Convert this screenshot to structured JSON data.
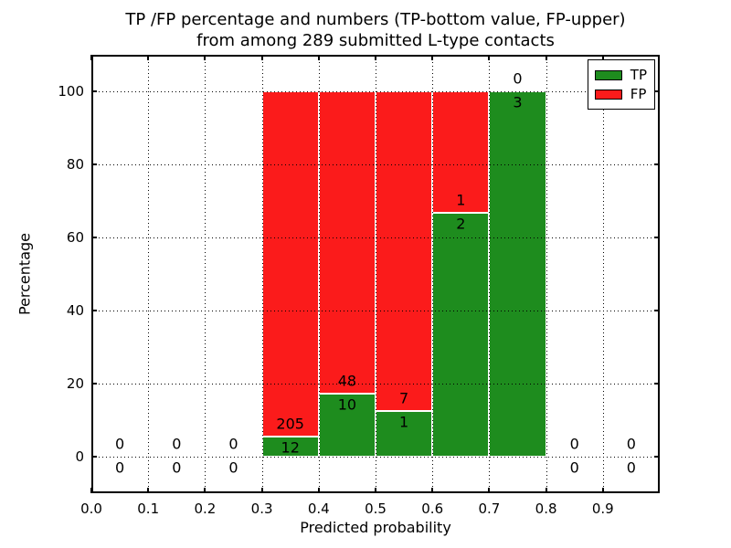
{
  "chart_data": {
    "type": "bar",
    "stacked": true,
    "title_line1": "TP /FP percentage and numbers (TP-bottom value, FP-upper)",
    "title_line2": "from among 289 submitted L-type contacts",
    "xlabel": "Predicted probability",
    "ylabel": "Percentage",
    "xlim": [
      0.0,
      1.0
    ],
    "ylim": [
      -10,
      110
    ],
    "grid": "dotted",
    "bin_width": 0.1,
    "colors": {
      "tp": "#1e8c1e",
      "fp": "#fb1b1b",
      "bar_edge": "#ffffff",
      "grid": "#000000"
    },
    "legend": {
      "position": "upper-right",
      "entries": [
        {
          "name": "TP",
          "label": "TP",
          "color": "#1e8c1e"
        },
        {
          "name": "FP",
          "label": "FP",
          "color": "#fb1b1b"
        }
      ]
    },
    "xticks": [
      {
        "v": 0.0,
        "label": "0.0"
      },
      {
        "v": 0.1,
        "label": "0.1"
      },
      {
        "v": 0.2,
        "label": "0.2"
      },
      {
        "v": 0.3,
        "label": "0.3"
      },
      {
        "v": 0.4,
        "label": "0.4"
      },
      {
        "v": 0.5,
        "label": "0.5"
      },
      {
        "v": 0.6,
        "label": "0.6"
      },
      {
        "v": 0.7,
        "label": "0.7"
      },
      {
        "v": 0.8,
        "label": "0.8"
      },
      {
        "v": 0.9,
        "label": "0.9"
      }
    ],
    "yticks": [
      {
        "v": 0,
        "label": "0"
      },
      {
        "v": 20,
        "label": "20"
      },
      {
        "v": 40,
        "label": "40"
      },
      {
        "v": 60,
        "label": "60"
      },
      {
        "v": 80,
        "label": "80"
      },
      {
        "v": 100,
        "label": "100"
      }
    ],
    "bins": [
      {
        "x_start": 0.0,
        "x_end": 0.1,
        "tp_count": 0,
        "fp_count": 0,
        "tp_pct": 0,
        "fp_pct": 0,
        "has_bar": false
      },
      {
        "x_start": 0.1,
        "x_end": 0.2,
        "tp_count": 0,
        "fp_count": 0,
        "tp_pct": 0,
        "fp_pct": 0,
        "has_bar": false
      },
      {
        "x_start": 0.2,
        "x_end": 0.3,
        "tp_count": 0,
        "fp_count": 0,
        "tp_pct": 0,
        "fp_pct": 0,
        "has_bar": false
      },
      {
        "x_start": 0.3,
        "x_end": 0.4,
        "tp_count": 12,
        "fp_count": 205,
        "tp_pct": 5.53,
        "fp_pct": 94.47,
        "has_bar": true
      },
      {
        "x_start": 0.4,
        "x_end": 0.5,
        "tp_count": 10,
        "fp_count": 48,
        "tp_pct": 17.24,
        "fp_pct": 82.76,
        "has_bar": true
      },
      {
        "x_start": 0.5,
        "x_end": 0.6,
        "tp_count": 1,
        "fp_count": 7,
        "tp_pct": 12.5,
        "fp_pct": 87.5,
        "has_bar": true
      },
      {
        "x_start": 0.6,
        "x_end": 0.7,
        "tp_count": 2,
        "fp_count": 1,
        "tp_pct": 66.67,
        "fp_pct": 33.33,
        "has_bar": true
      },
      {
        "x_start": 0.7,
        "x_end": 0.8,
        "tp_count": 3,
        "fp_count": 0,
        "tp_pct": 100,
        "fp_pct": 0,
        "has_bar": true
      },
      {
        "x_start": 0.8,
        "x_end": 0.9,
        "tp_count": 0,
        "fp_count": 0,
        "tp_pct": 0,
        "fp_pct": 0,
        "has_bar": false
      },
      {
        "x_start": 0.9,
        "x_end": 1.0,
        "tp_count": 0,
        "fp_count": 0,
        "tp_pct": 0,
        "fp_pct": 0,
        "has_bar": false
      }
    ]
  }
}
